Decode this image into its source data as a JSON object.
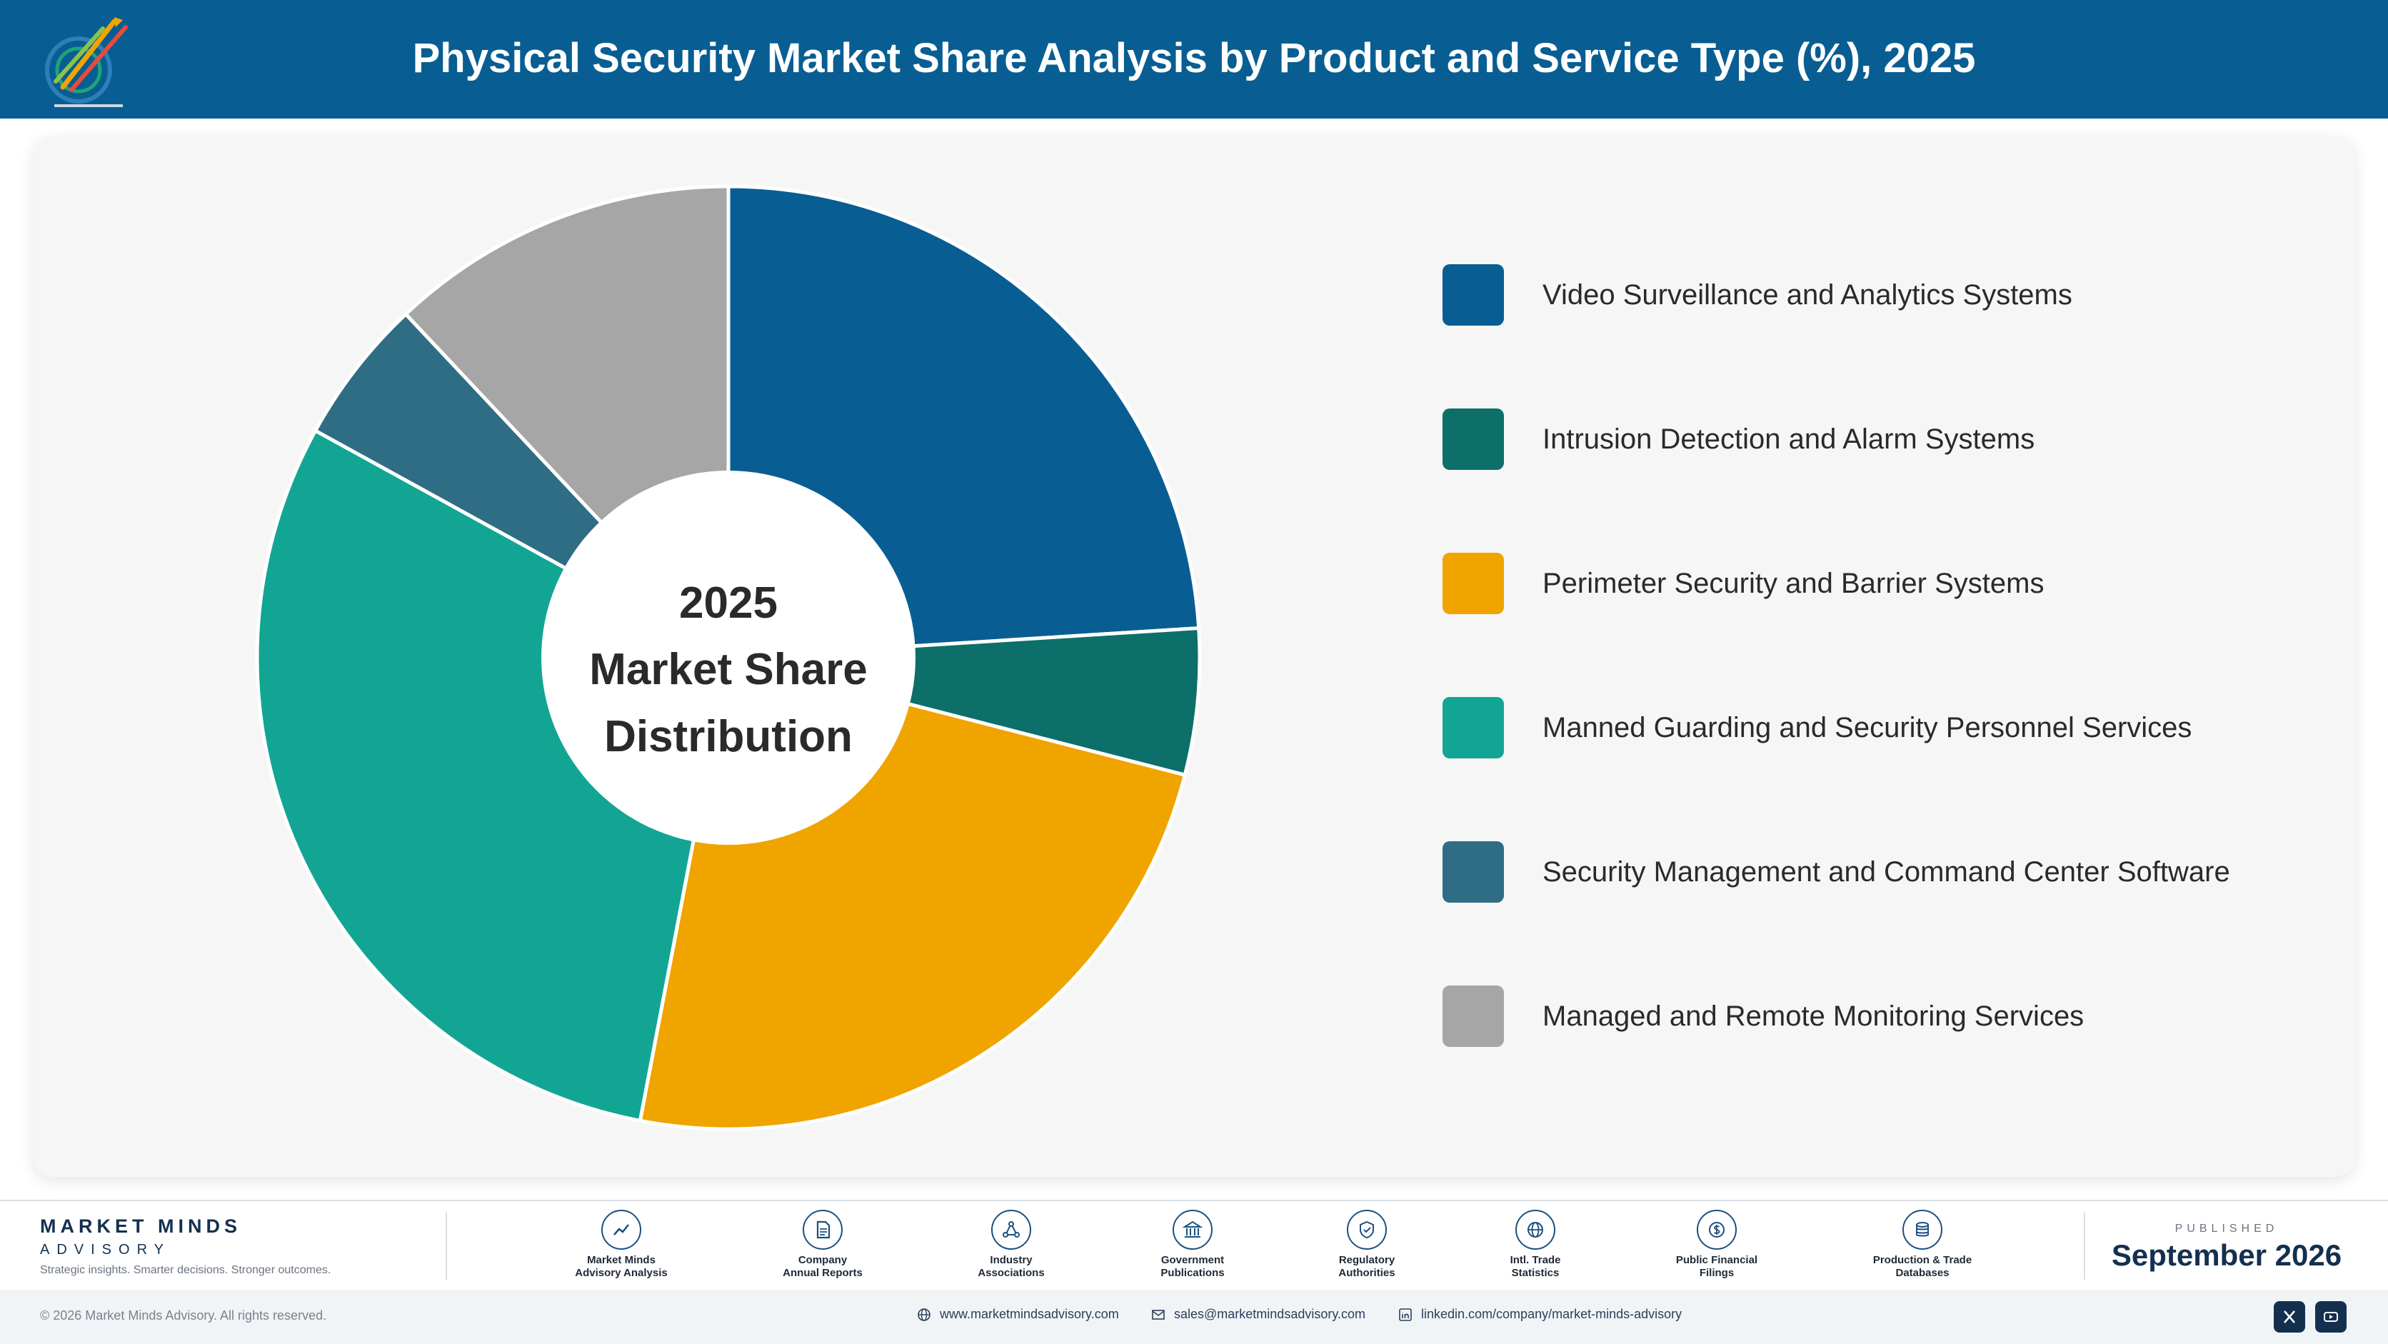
{
  "header": {
    "title": "Physical Security Market Share Analysis by Product and Service Type (%), 2025"
  },
  "colors": {
    "header_bg": "#085e93",
    "card_bg": "#f6f6f6"
  },
  "chart_data": {
    "type": "pie",
    "variant": "donut",
    "title": "Physical Security Market Share Analysis by Product and Service Type (%), 2025",
    "center_label": [
      "2025",
      "Market Share",
      "Distribution"
    ],
    "legend_position": "right",
    "categories": [
      "Video Surveillance and Analytics Systems",
      "Intrusion Detection and Alarm Systems",
      "Perimeter Security and Barrier Systems",
      "Manned Guarding and Security Personnel Services",
      "Security Management and Command Center Software",
      "Managed and Remote Monitoring Services"
    ],
    "values": [
      24,
      5,
      24,
      30,
      5,
      12
    ],
    "colors": [
      "#085e93",
      "#0c6f6a",
      "#f0a400",
      "#12a594",
      "#2f6d84",
      "#a6a6a6"
    ]
  },
  "footer": {
    "brand_name": "MARKET MINDS",
    "brand_sub": "ADVISORY",
    "tagline": "Strategic insights. Smarter decisions. Stronger outcomes.",
    "sources": [
      {
        "label": "Market Minds\nAdvisory Analysis",
        "icon": "chart-line-icon"
      },
      {
        "label": "Company\nAnnual Reports",
        "icon": "document-icon"
      },
      {
        "label": "Industry\nAssociations",
        "icon": "network-icon"
      },
      {
        "label": "Government\nPublications",
        "icon": "government-icon"
      },
      {
        "label": "Regulatory\nAuthorities",
        "icon": "shield-check-icon"
      },
      {
        "label": "Intl. Trade\nStatistics",
        "icon": "globe-icon"
      },
      {
        "label": "Public Financial\nFilings",
        "icon": "coin-icon"
      },
      {
        "label": "Production & Trade\nDatabases",
        "icon": "database-icon"
      }
    ],
    "published_label": "PUBLISHED",
    "published_date": "September 2026"
  },
  "bottom_bar": {
    "copyright": "© 2026 Market Minds Advisory. All rights reserved.",
    "website": "www.marketmindsadvisory.com",
    "email": "sales@marketmindsadvisory.com",
    "linkedin": "linkedin.com/company/market-minds-advisory"
  }
}
